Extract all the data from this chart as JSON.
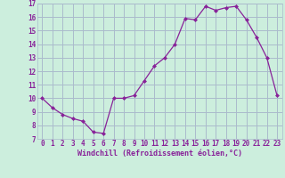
{
  "x": [
    0,
    1,
    2,
    3,
    4,
    5,
    6,
    7,
    8,
    9,
    10,
    11,
    12,
    13,
    14,
    15,
    16,
    17,
    18,
    19,
    20,
    21,
    22,
    23
  ],
  "y": [
    10.0,
    9.3,
    8.8,
    8.5,
    8.3,
    7.5,
    7.4,
    10.0,
    10.0,
    10.2,
    11.3,
    12.4,
    13.0,
    14.0,
    15.9,
    15.8,
    16.8,
    16.5,
    16.7,
    16.8,
    15.8,
    14.5,
    13.0,
    10.2
  ],
  "xlim": [
    -0.5,
    23.5
  ],
  "ylim": [
    7,
    17
  ],
  "yticks": [
    7,
    8,
    9,
    10,
    11,
    12,
    13,
    14,
    15,
    16,
    17
  ],
  "xticks": [
    0,
    1,
    2,
    3,
    4,
    5,
    6,
    7,
    8,
    9,
    10,
    11,
    12,
    13,
    14,
    15,
    16,
    17,
    18,
    19,
    20,
    21,
    22,
    23
  ],
  "xlabel": "Windchill (Refroidissement éolien,°C)",
  "line_color": "#882299",
  "marker": "D",
  "marker_size": 2.0,
  "bg_color": "#cceedd",
  "grid_color": "#aabbcc",
  "font_color": "#882299",
  "tick_fontsize": 5.5,
  "xlabel_fontsize": 6.0
}
